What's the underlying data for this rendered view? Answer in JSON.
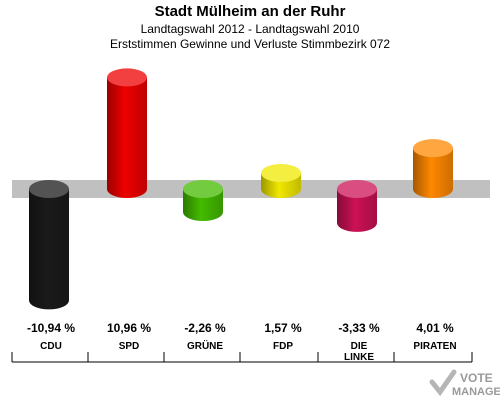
{
  "header": {
    "title": "Stadt Mülheim an der Ruhr",
    "subtitle": "Landtagswahl 2012 - Landtagswahl 2010",
    "description": "Erststimmen Gewinne und Verluste Stimmbezirk 072"
  },
  "chart_data": {
    "type": "bar",
    "title": "Stadt Mülheim an der Ruhr",
    "categories": [
      "CDU",
      "SPD",
      "GRÜNE",
      "FDP",
      "DIE LINKE",
      "PIRATEN"
    ],
    "values": [
      -10.94,
      10.96,
      -2.26,
      1.57,
      -3.33,
      4.01
    ],
    "value_labels": [
      "-10,94 %",
      "10,96 %",
      "-2,26 %",
      "1,57 %",
      "-3,33 %",
      "4,01 %"
    ],
    "colors": [
      "#1a1a1a",
      "#ee0000",
      "#44bb00",
      "#f0e800",
      "#cc1155",
      "#ff8800"
    ],
    "xlabel": "",
    "ylabel": "",
    "ylim": [
      -12,
      12
    ],
    "grid": false,
    "legend": "none"
  },
  "logo": {
    "text_1": "VOTE",
    "text_2": "MANAGER"
  }
}
